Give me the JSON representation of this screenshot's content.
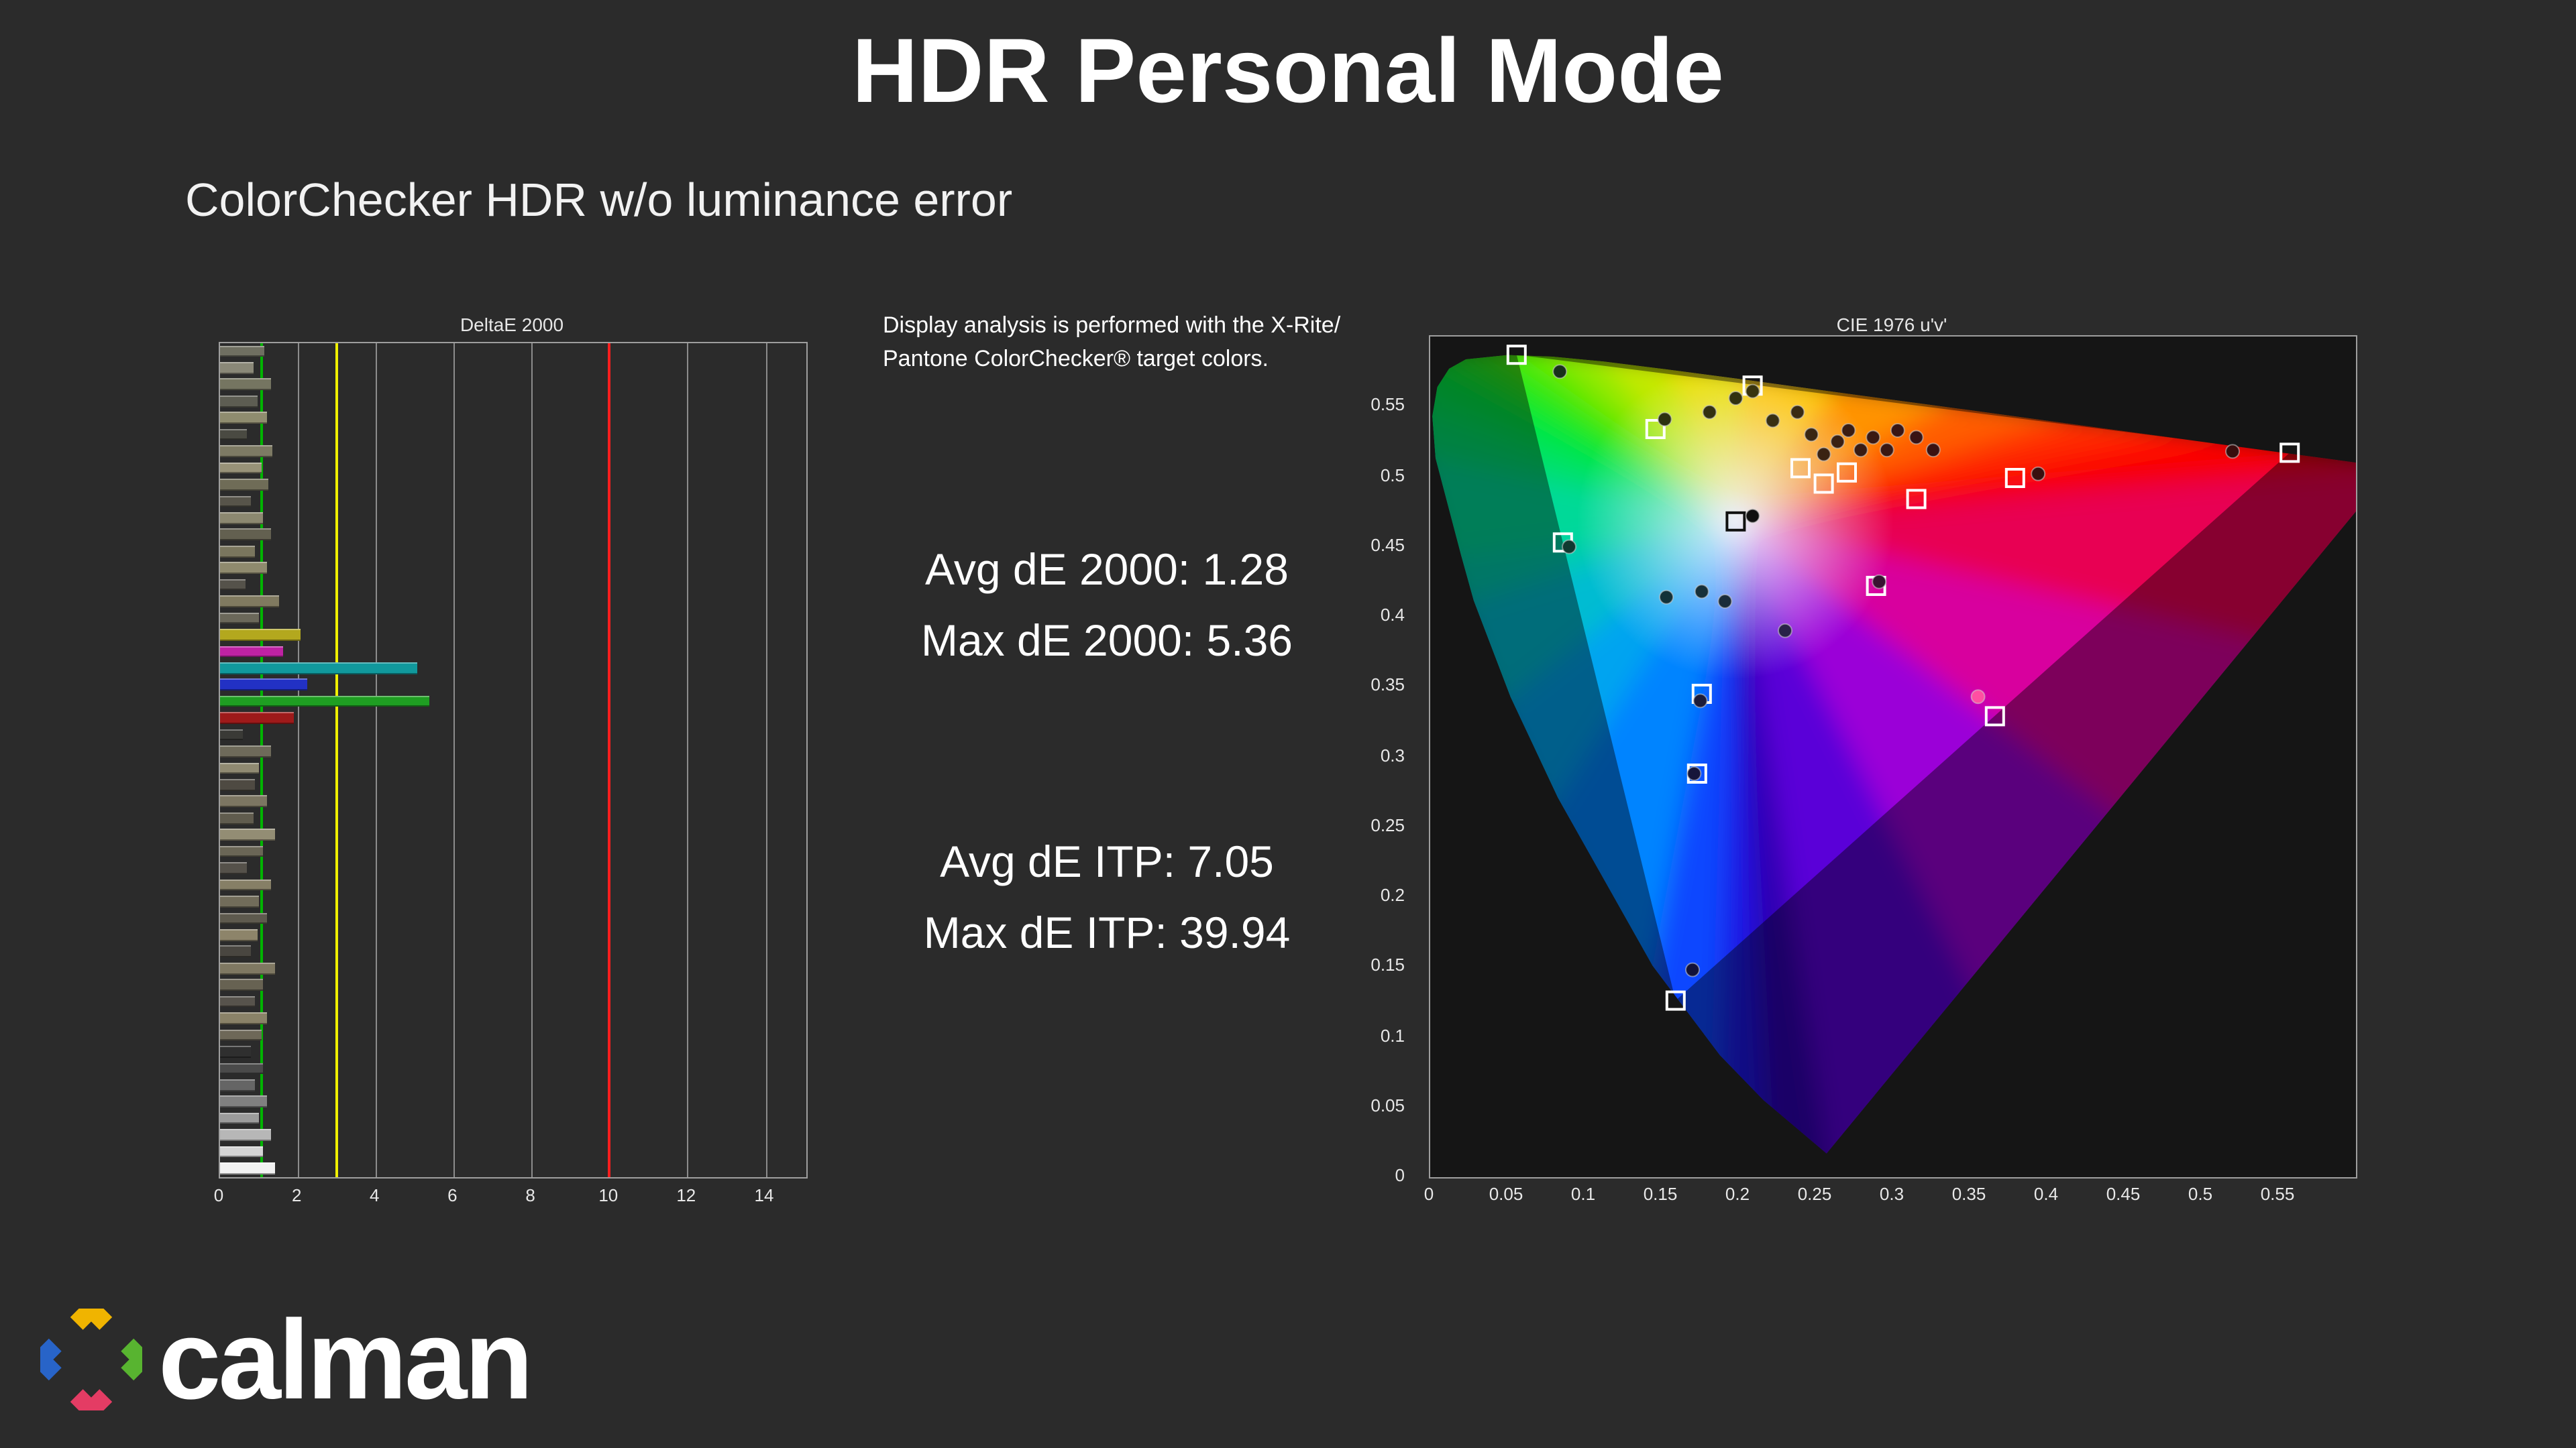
{
  "title": "HDR Personal Mode",
  "subtitle": "ColorChecker HDR w/o luminance error",
  "note": {
    "line1": "Display analysis is performed with the X-Rite/",
    "line2": "Pantone ColorChecker® target colors."
  },
  "metrics": {
    "avg_de2000": "Avg dE 2000: 1.28",
    "max_de2000": "Max dE 2000: 5.36",
    "avg_deitp": "Avg dE ITP: 7.05",
    "max_deitp": "Max dE ITP: 39.94"
  },
  "logo": {
    "text": "calman"
  },
  "colors": {
    "background": "#2b2b2b",
    "reference_green": "#00b400",
    "reference_yellow": "#f0f000",
    "reference_red": "#ff1e1e"
  },
  "chart_data": [
    {
      "type": "bar",
      "title": "DeltaE 2000",
      "orientation": "horizontal",
      "xlabel_ticks": [
        0,
        2,
        4,
        6,
        8,
        10,
        12,
        14
      ],
      "xlim": [
        0,
        15.05
      ],
      "grid": true,
      "reference_lines": [
        {
          "value": 1.05,
          "color": "#00b400"
        },
        {
          "value": 3.0,
          "color": "#f0f000"
        },
        {
          "value": 10.0,
          "color": "#ff1e1e"
        }
      ],
      "summary": {
        "avg_de2000": 1.28,
        "max_de2000": 5.36,
        "avg_de_itp": 7.05,
        "max_de_itp": 39.94
      },
      "bars": [
        {
          "value": 1.15,
          "color": "#6f6f61"
        },
        {
          "value": 0.85,
          "color": "#8a8878"
        },
        {
          "value": 1.3,
          "color": "#757561"
        },
        {
          "value": 0.95,
          "color": "#5d5d52"
        },
        {
          "value": 1.2,
          "color": "#8f8c6f"
        },
        {
          "value": 0.7,
          "color": "#4a4a42"
        },
        {
          "value": 1.35,
          "color": "#7d7a64"
        },
        {
          "value": 1.05,
          "color": "#989278"
        },
        {
          "value": 1.25,
          "color": "#6f6c57"
        },
        {
          "value": 0.8,
          "color": "#57544a"
        },
        {
          "value": 1.1,
          "color": "#8c8870"
        },
        {
          "value": 1.3,
          "color": "#636050"
        },
        {
          "value": 0.9,
          "color": "#7a765e"
        },
        {
          "value": 1.2,
          "color": "#8f8a6e"
        },
        {
          "value": 0.65,
          "color": "#55524a"
        },
        {
          "value": 1.5,
          "color": "#807a60"
        },
        {
          "value": 1.0,
          "color": "#6b685a"
        },
        {
          "value": 2.05,
          "color": "#b3a81e"
        },
        {
          "value": 1.6,
          "color": "#bf22a3"
        },
        {
          "value": 5.05,
          "color": "#11999d"
        },
        {
          "value": 2.25,
          "color": "#2231c4"
        },
        {
          "value": 5.36,
          "color": "#1f9e22"
        },
        {
          "value": 1.9,
          "color": "#9e1a1a"
        },
        {
          "value": 0.6,
          "color": "#3a3a36"
        },
        {
          "value": 1.3,
          "color": "#6e6a5a"
        },
        {
          "value": 1.0,
          "color": "#908a72"
        },
        {
          "value": 0.9,
          "color": "#4e4a42"
        },
        {
          "value": 1.2,
          "color": "#7c7662"
        },
        {
          "value": 0.85,
          "color": "#605c4e"
        },
        {
          "value": 1.4,
          "color": "#938d74"
        },
        {
          "value": 1.1,
          "color": "#6a6656"
        },
        {
          "value": 0.7,
          "color": "#55514a"
        },
        {
          "value": 1.3,
          "color": "#867f66"
        },
        {
          "value": 1.0,
          "color": "#716c5a"
        },
        {
          "value": 1.2,
          "color": "#5e5a4e"
        },
        {
          "value": 0.95,
          "color": "#8d846a"
        },
        {
          "value": 0.8,
          "color": "#494640"
        },
        {
          "value": 1.4,
          "color": "#7f7862"
        },
        {
          "value": 1.1,
          "color": "#676252"
        },
        {
          "value": 0.9,
          "color": "#57534c"
        },
        {
          "value": 1.2,
          "color": "#8a8268"
        },
        {
          "value": 1.05,
          "color": "#6e6858"
        },
        {
          "value": 0.8,
          "color": "#2f2f2f"
        },
        {
          "value": 1.1,
          "color": "#4a4a4a"
        },
        {
          "value": 0.9,
          "color": "#656565"
        },
        {
          "value": 1.2,
          "color": "#808080"
        },
        {
          "value": 1.0,
          "color": "#9b9b9b"
        },
        {
          "value": 1.3,
          "color": "#b7b7b7"
        },
        {
          "value": 1.1,
          "color": "#d4d4d4"
        },
        {
          "value": 1.4,
          "color": "#f2f2f2"
        }
      ]
    },
    {
      "type": "scatter",
      "title": "CIE 1976 u'v'",
      "xlabel_ticks": [
        "0",
        "0.05",
        "0.1",
        "0.15",
        "0.2",
        "0.25",
        "0.3",
        "0.35",
        "0.4",
        "0.45",
        "0.5",
        "0.55"
      ],
      "ylabel_ticks": [
        "0",
        "0.05",
        "0.1",
        "0.15",
        "0.2",
        "0.25",
        "0.3",
        "0.35",
        "0.4",
        "0.45",
        "0.5",
        "0.55"
      ],
      "xlim": [
        0,
        0.6
      ],
      "ylim": [
        0,
        0.6
      ],
      "white_point": {
        "u": 0.1978,
        "v": 0.4683
      },
      "gamut_triangle": [
        {
          "u": 0.056,
          "v": 0.587
        },
        {
          "u": 0.557,
          "v": 0.517
        },
        {
          "u": 0.159,
          "v": 0.126
        }
      ],
      "targets": [
        {
          "u": 0.056,
          "v": 0.587
        },
        {
          "u": 0.557,
          "v": 0.517
        },
        {
          "u": 0.159,
          "v": 0.126
        },
        {
          "u": 0.209,
          "v": 0.565
        },
        {
          "u": 0.086,
          "v": 0.453
        },
        {
          "u": 0.366,
          "v": 0.329
        },
        {
          "u": 0.198,
          "v": 0.468,
          "white_point": true
        },
        {
          "u": 0.146,
          "v": 0.534
        },
        {
          "u": 0.24,
          "v": 0.506
        },
        {
          "u": 0.255,
          "v": 0.495
        },
        {
          "u": 0.27,
          "v": 0.503
        },
        {
          "u": 0.315,
          "v": 0.484
        },
        {
          "u": 0.379,
          "v": 0.499
        },
        {
          "u": 0.289,
          "v": 0.422
        },
        {
          "u": 0.176,
          "v": 0.345
        },
        {
          "u": 0.173,
          "v": 0.288
        }
      ],
      "measurements": [
        {
          "u": 0.084,
          "v": 0.575,
          "color": "#17321a"
        },
        {
          "u": 0.198,
          "v": 0.556,
          "color": "#32310f"
        },
        {
          "u": 0.209,
          "v": 0.561,
          "color": "#38340e"
        },
        {
          "u": 0.152,
          "v": 0.541,
          "color": "#2c330f"
        },
        {
          "u": 0.181,
          "v": 0.546,
          "color": "#333110"
        },
        {
          "u": 0.222,
          "v": 0.54,
          "color": "#383012"
        },
        {
          "u": 0.238,
          "v": 0.546,
          "color": "#3a2b12"
        },
        {
          "u": 0.247,
          "v": 0.53,
          "color": "#3a2712"
        },
        {
          "u": 0.255,
          "v": 0.516,
          "color": "#3a2312"
        },
        {
          "u": 0.264,
          "v": 0.525,
          "color": "#3a2012"
        },
        {
          "u": 0.271,
          "v": 0.533,
          "color": "#3a1d12"
        },
        {
          "u": 0.279,
          "v": 0.519,
          "color": "#3a1b12"
        },
        {
          "u": 0.287,
          "v": 0.528,
          "color": "#3a1912"
        },
        {
          "u": 0.296,
          "v": 0.519,
          "color": "#3a1712"
        },
        {
          "u": 0.303,
          "v": 0.533,
          "color": "#3a1513"
        },
        {
          "u": 0.315,
          "v": 0.528,
          "color": "#3a1313"
        },
        {
          "u": 0.326,
          "v": 0.519,
          "color": "#3a1111"
        },
        {
          "u": 0.394,
          "v": 0.502,
          "color": "#3a0f0f"
        },
        {
          "u": 0.52,
          "v": 0.518,
          "color": "#380d0d"
        },
        {
          "u": 0.209,
          "v": 0.472,
          "color": "#101010"
        },
        {
          "u": 0.09,
          "v": 0.45,
          "color": "#0f3a30"
        },
        {
          "u": 0.153,
          "v": 0.414,
          "color": "#12333a"
        },
        {
          "u": 0.176,
          "v": 0.418,
          "color": "#16303a"
        },
        {
          "u": 0.191,
          "v": 0.411,
          "color": "#1a2c3a"
        },
        {
          "u": 0.23,
          "v": 0.39,
          "color": "#29224a"
        },
        {
          "u": 0.291,
          "v": 0.425,
          "color": "#3a1232"
        },
        {
          "u": 0.355,
          "v": 0.343,
          "color": "#ff4fa2"
        },
        {
          "u": 0.175,
          "v": 0.34,
          "color": "#1c1c3a"
        },
        {
          "u": 0.171,
          "v": 0.288,
          "color": "#16163a"
        },
        {
          "u": 0.17,
          "v": 0.148,
          "color": "#12123a"
        }
      ]
    }
  ]
}
